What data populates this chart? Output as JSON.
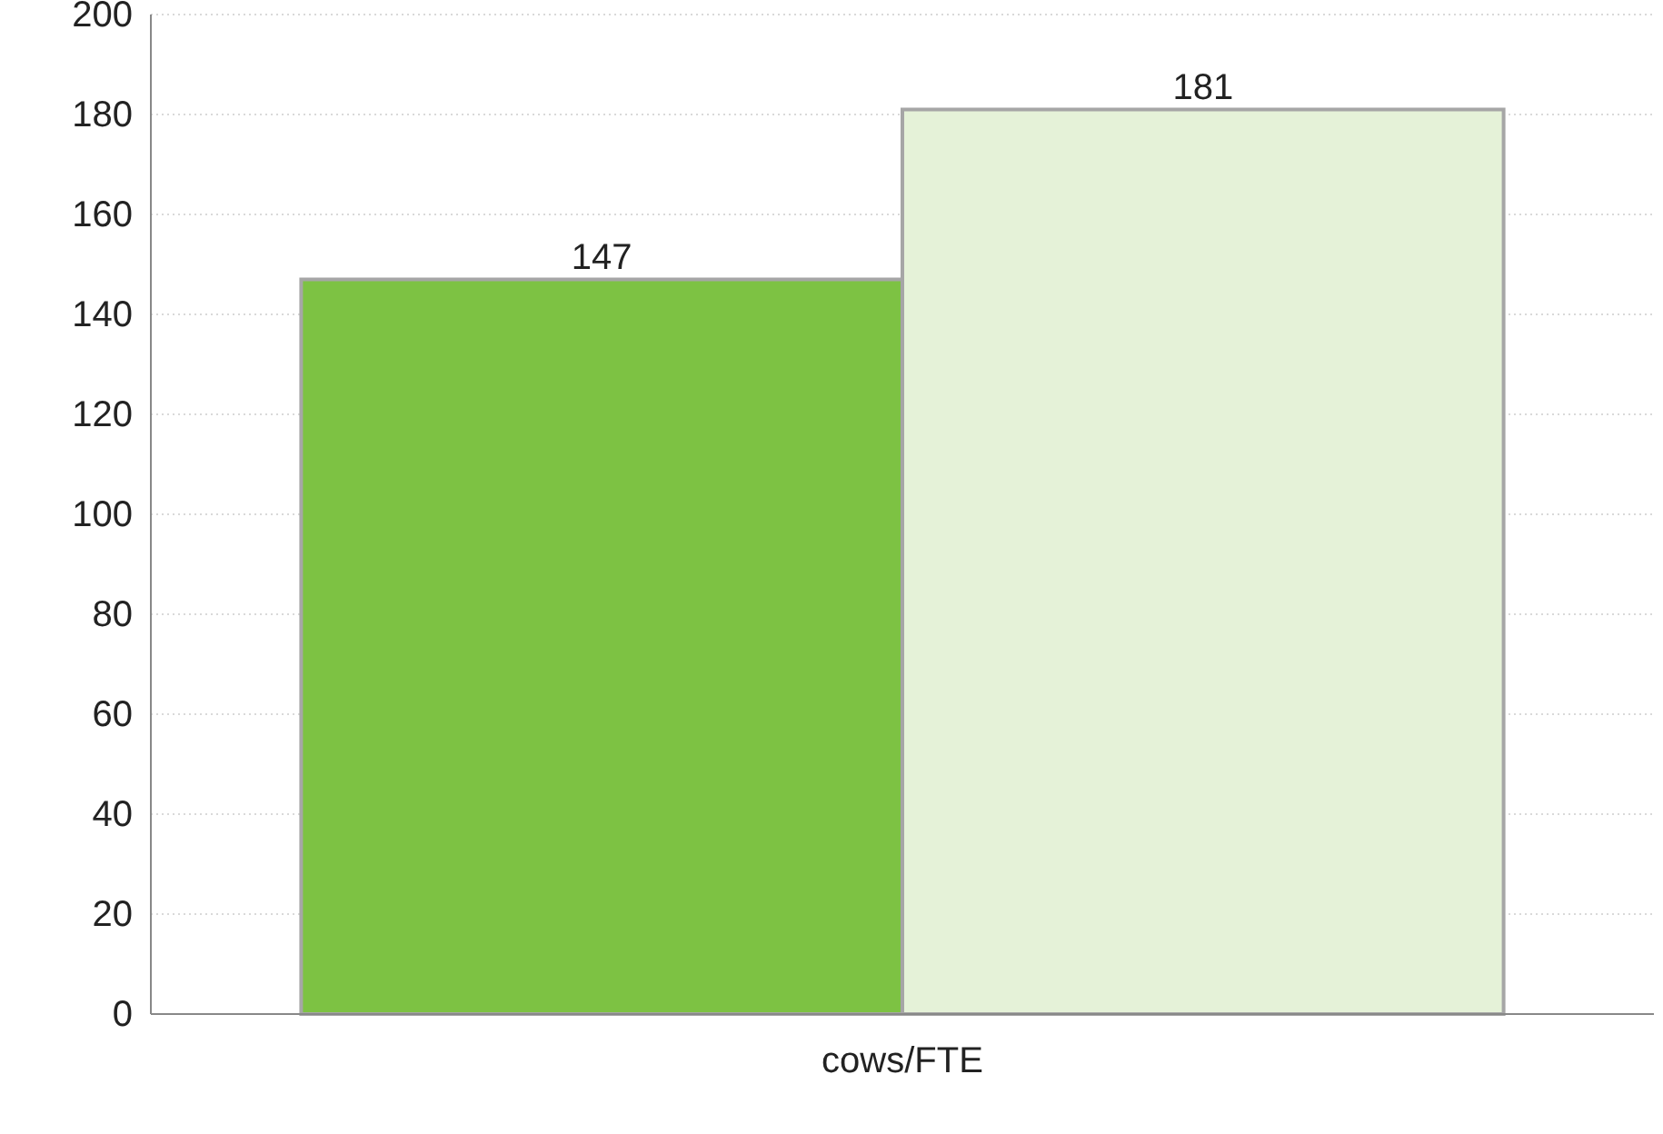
{
  "chart_data": {
    "type": "bar",
    "categories": [
      "cows/FTE"
    ],
    "series": [
      {
        "color": "#7dc243",
        "values": [
          147
        ]
      },
      {
        "color": "#e5f2d8",
        "values": [
          181
        ]
      }
    ],
    "ylim": [
      0,
      200
    ],
    "yticks": [
      0,
      20,
      40,
      60,
      80,
      100,
      120,
      140,
      160,
      180,
      200
    ],
    "grid": "y",
    "data_labels": true
  }
}
